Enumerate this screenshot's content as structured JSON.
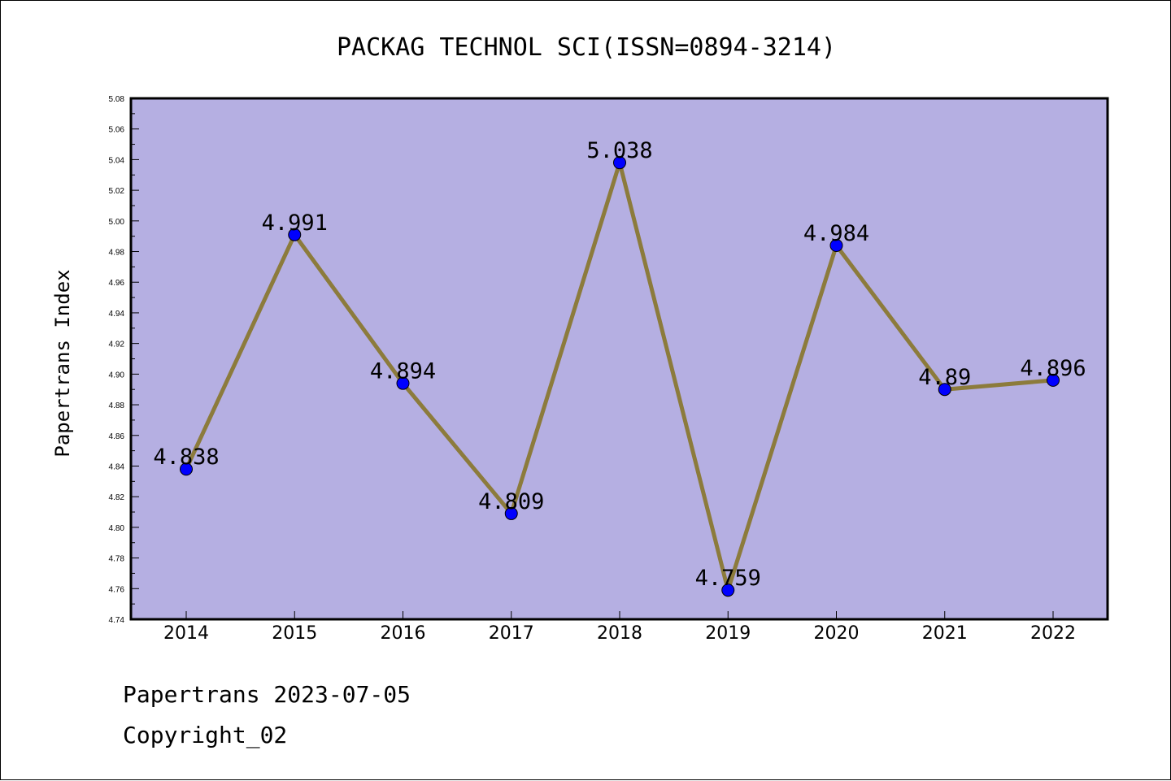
{
  "chart_data": {
    "type": "line",
    "title": "PACKAG TECHNOL SCI(ISSN=0894-3214)",
    "ylabel": "Papertrans Index",
    "xlabel": "",
    "x": [
      "2014",
      "2015",
      "2016",
      "2017",
      "2018",
      "2019",
      "2020",
      "2021",
      "2022"
    ],
    "series": [
      {
        "values": [
          4.838,
          4.991,
          4.894,
          4.809,
          5.038,
          4.759,
          4.984,
          4.89,
          4.896
        ],
        "labels": [
          "4.838",
          "4.991",
          "4.894",
          "4.809",
          "5.038",
          "4.759",
          "4.984",
          "4.89",
          "4.896"
        ]
      }
    ],
    "ylim": [
      4.74,
      5.08
    ],
    "yticks": [
      "4.74",
      "4.76",
      "4.78",
      "4.80",
      "4.82",
      "4.84",
      "4.86",
      "4.88",
      "4.90",
      "4.92",
      "4.94",
      "4.96",
      "4.98",
      "5.00",
      "5.02",
      "5.04",
      "5.06",
      "5.08"
    ],
    "grid": false,
    "colors": {
      "plot_background": "#b5afe2",
      "line": "#8c7b3c",
      "marker": "#0000ff"
    }
  },
  "footer": {
    "source": "Papertrans 2023-07-05",
    "copyright": "Copyright_02"
  }
}
